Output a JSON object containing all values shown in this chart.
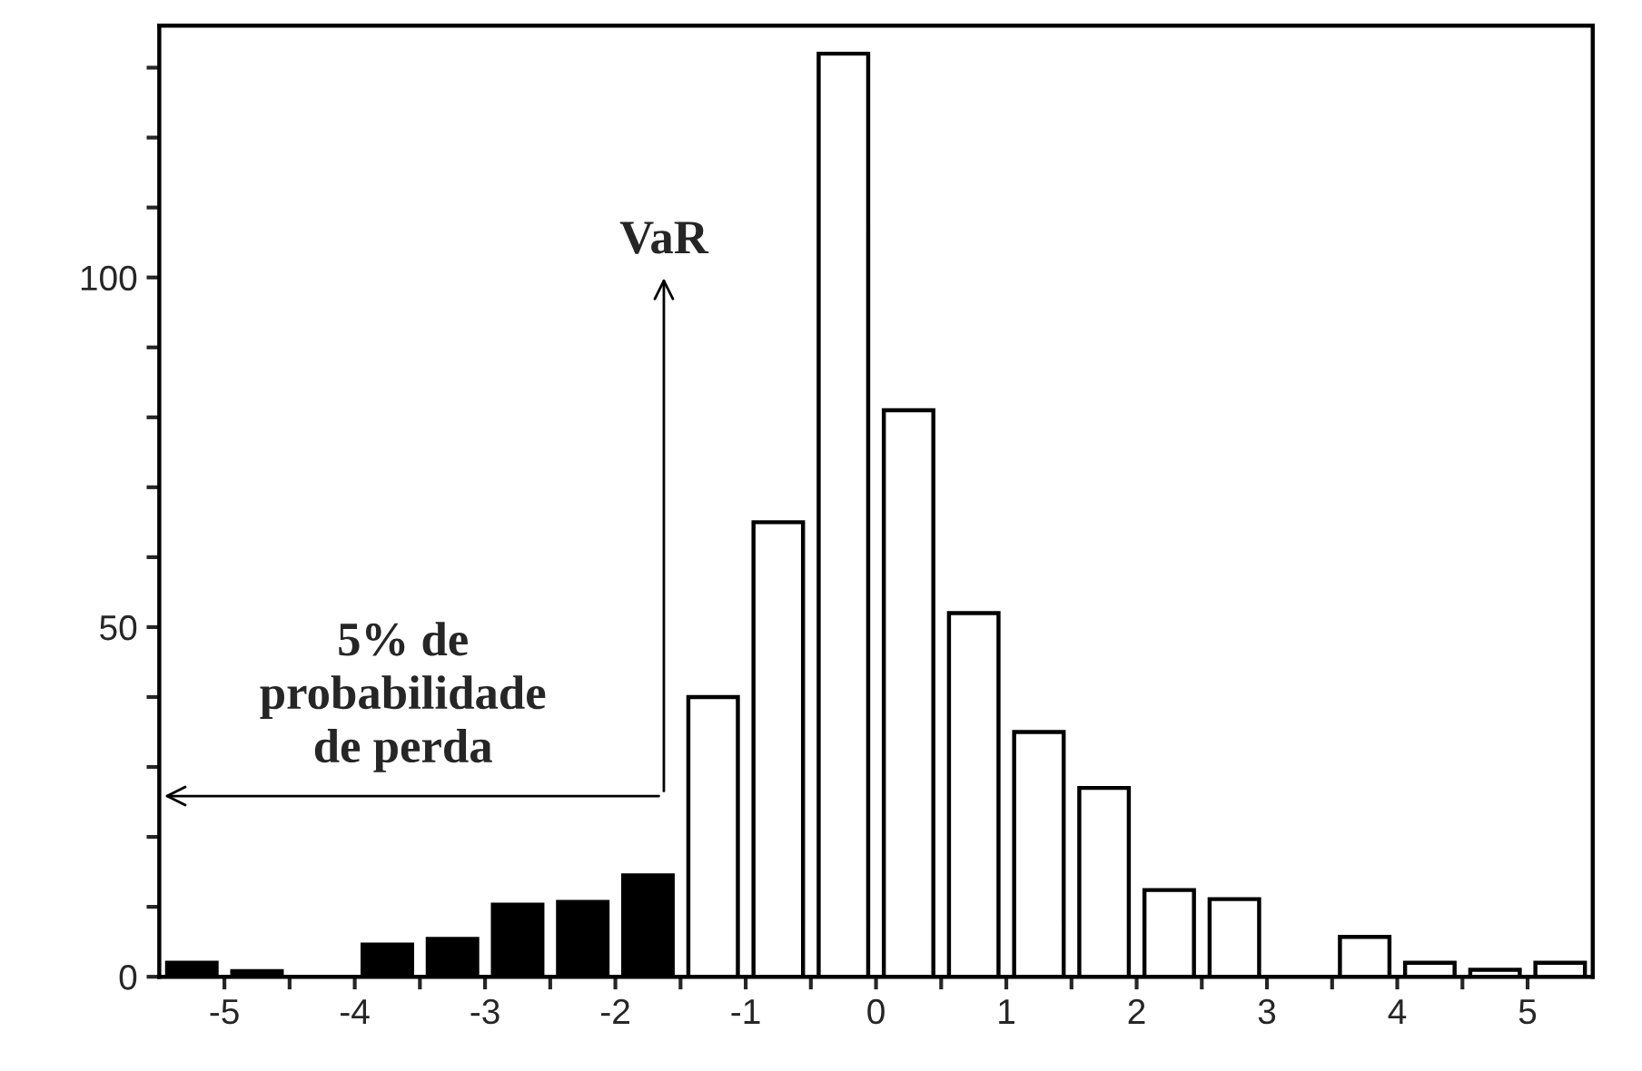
{
  "chart_data": {
    "type": "histogram",
    "bins": [
      -5.5,
      -5,
      -4.5,
      -4,
      -3.5,
      -3,
      -2.5,
      -2,
      -1.5,
      -1,
      -0.5,
      0,
      0.5,
      1,
      1.5,
      2,
      2.5,
      3,
      3.5,
      4,
      4.5,
      5,
      5.5
    ],
    "values": [
      2,
      0.8,
      0,
      4.6,
      5.4,
      10.3,
      10.7,
      14.5,
      40,
      65,
      132,
      81,
      52,
      35,
      27,
      12.4,
      11.1,
      0,
      5.7,
      2,
      1,
      2
    ],
    "colors": [
      "#000000",
      "#000000",
      "#000000",
      "#000000",
      "#000000",
      "#000000",
      "#000000",
      "#000000",
      "#ffffff",
      "#ffffff",
      "#ffffff",
      "#ffffff",
      "#ffffff",
      "#ffffff",
      "#ffffff",
      "#ffffff",
      "#ffffff",
      "#ffffff",
      "#ffffff",
      "#ffffff",
      "#ffffff",
      "#ffffff"
    ],
    "xlim": [
      -5.5,
      5.5
    ],
    "ylim": [
      0,
      136
    ],
    "xticks": [
      -5,
      {
        "value": -4.5,
        "label": null
      },
      -4,
      {
        "value": -3.5,
        "label": null
      },
      -3,
      {
        "value": -2.5,
        "label": null
      },
      -2,
      {
        "value": -1.5,
        "label": null
      },
      -1,
      {
        "value": -0.5,
        "label": null
      },
      0,
      {
        "value": 0.5,
        "label": null
      },
      1,
      {
        "value": 1.5,
        "label": null
      },
      2,
      {
        "value": 2.5,
        "label": null
      },
      3,
      {
        "value": 3.5,
        "label": null
      },
      4,
      {
        "value": 4.5,
        "label": null
      },
      5
    ],
    "yticks": [
      0,
      {
        "value": 10,
        "label": null
      },
      {
        "value": 20,
        "label": null
      },
      {
        "value": 30,
        "label": null
      },
      {
        "value": 40,
        "label": null
      },
      50,
      {
        "value": 60,
        "label": null
      },
      {
        "value": 70,
        "label": null
      },
      {
        "value": 80,
        "label": null
      },
      {
        "value": 90,
        "label": null
      },
      100,
      {
        "value": 110,
        "label": null
      },
      {
        "value": 120,
        "label": null
      },
      {
        "value": 130,
        "label": null
      }
    ],
    "annotations": [
      "VaR",
      "5% de\nprobabilidade\nde perda"
    ],
    "grid": false
  }
}
